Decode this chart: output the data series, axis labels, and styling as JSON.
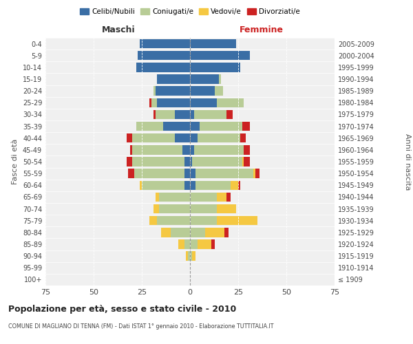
{
  "age_groups": [
    "100+",
    "95-99",
    "90-94",
    "85-89",
    "80-84",
    "75-79",
    "70-74",
    "65-69",
    "60-64",
    "55-59",
    "50-54",
    "45-49",
    "40-44",
    "35-39",
    "30-34",
    "25-29",
    "20-24",
    "15-19",
    "10-14",
    "5-9",
    "0-4"
  ],
  "birth_years": [
    "≤ 1909",
    "1910-1914",
    "1915-1919",
    "1920-1924",
    "1925-1929",
    "1930-1934",
    "1935-1939",
    "1940-1944",
    "1945-1949",
    "1950-1954",
    "1955-1959",
    "1960-1964",
    "1965-1969",
    "1970-1974",
    "1975-1979",
    "1980-1984",
    "1985-1989",
    "1990-1994",
    "1995-1999",
    "2000-2004",
    "2005-2009"
  ],
  "male": {
    "celibi": [
      0,
      0,
      0,
      0,
      0,
      0,
      0,
      0,
      3,
      3,
      3,
      4,
      8,
      14,
      8,
      17,
      18,
      17,
      28,
      27,
      26
    ],
    "coniugati": [
      0,
      0,
      1,
      3,
      10,
      17,
      16,
      16,
      22,
      26,
      27,
      26,
      22,
      14,
      10,
      3,
      1,
      0,
      0,
      0,
      0
    ],
    "vedovi": [
      0,
      0,
      1,
      3,
      5,
      4,
      3,
      2,
      1,
      0,
      0,
      0,
      0,
      0,
      0,
      0,
      0,
      0,
      0,
      0,
      0
    ],
    "divorziati": [
      0,
      0,
      0,
      0,
      0,
      0,
      0,
      0,
      0,
      3,
      3,
      1,
      3,
      0,
      1,
      1,
      0,
      0,
      0,
      0,
      0
    ]
  },
  "female": {
    "nubili": [
      0,
      0,
      0,
      0,
      0,
      0,
      0,
      0,
      3,
      3,
      1,
      2,
      4,
      5,
      2,
      14,
      13,
      15,
      26,
      31,
      24
    ],
    "coniugate": [
      0,
      0,
      1,
      4,
      8,
      14,
      14,
      14,
      18,
      30,
      26,
      26,
      22,
      22,
      17,
      14,
      4,
      1,
      0,
      0,
      0
    ],
    "vedove": [
      0,
      0,
      2,
      7,
      10,
      21,
      10,
      5,
      4,
      1,
      1,
      0,
      0,
      0,
      0,
      0,
      0,
      0,
      0,
      0,
      0
    ],
    "divorziate": [
      0,
      0,
      0,
      2,
      2,
      0,
      0,
      2,
      1,
      2,
      3,
      3,
      3,
      4,
      3,
      0,
      0,
      0,
      0,
      0,
      0
    ]
  },
  "colors": {
    "celibi": "#3a6ea5",
    "coniugati": "#b8cc96",
    "vedovi": "#f5c842",
    "divorziati": "#cc2222"
  },
  "title": "Popolazione per età, sesso e stato civile - 2010",
  "subtitle": "COMUNE DI MAGLIANO DI TENNA (FM) - Dati ISTAT 1° gennaio 2010 - Elaborazione TUTTITALIA.IT",
  "xlabel_left": "Maschi",
  "xlabel_right": "Femmine",
  "ylabel_left": "Fasce di età",
  "ylabel_right": "Anni di nascita",
  "xlim": 75,
  "background_color": "#ffffff",
  "grid_color": "#cccccc",
  "legend_labels": [
    "Celibi/Nubili",
    "Coniugati/e",
    "Vedovi/e",
    "Divorziati/e"
  ]
}
